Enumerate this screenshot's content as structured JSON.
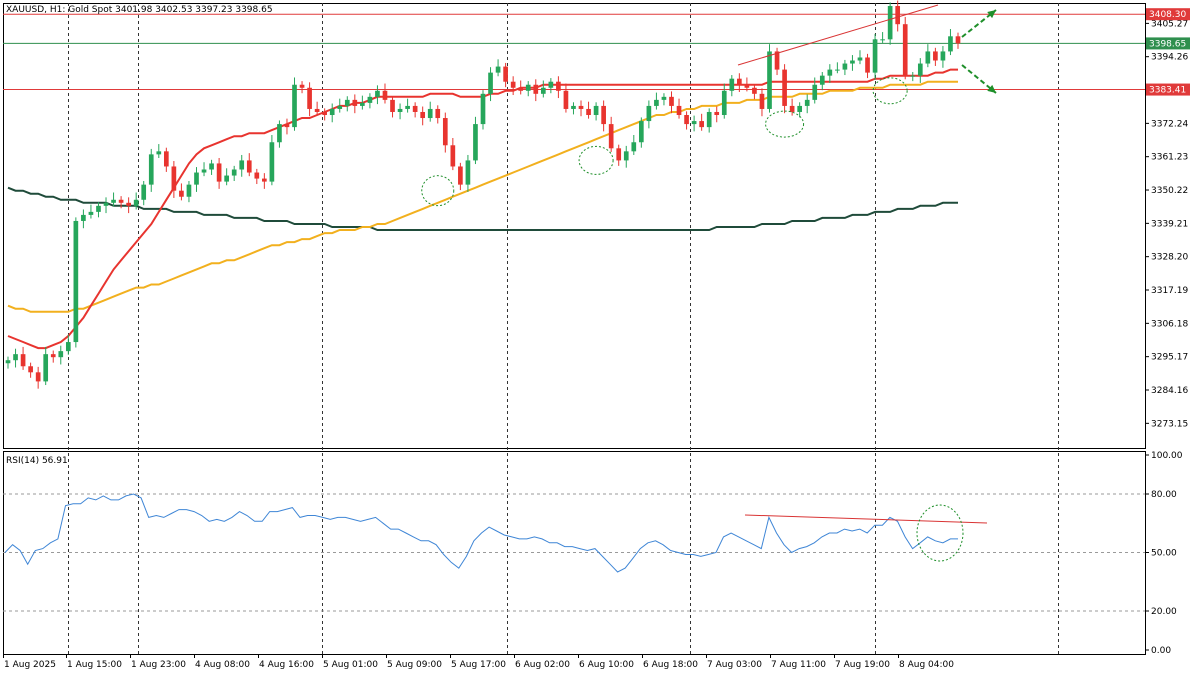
{
  "header": {
    "text": "XAUUSD, H1:  Gold Spot  3401.98 3402.53 3397.23 3398.65"
  },
  "rsi_header": {
    "text": "RSI(14) 56.91"
  },
  "colors": {
    "bull": "#26a65b",
    "bear": "#e8342f",
    "ma_fast": "#e8342f",
    "ma_mid": "#f2b01e",
    "ma_slow": "#1f4b3a",
    "rsi": "#3f86d6",
    "hline_red": "#e03a3a",
    "hline_green": "#2f8f4e",
    "annotation_green": "#1f8f2a",
    "trend_red": "#d93434"
  },
  "chart_data": [
    {
      "type": "candlestick",
      "symbol": "XAUUSD",
      "timeframe": "H1",
      "ylim": [
        3265,
        3412
      ],
      "y_ticks": [
        "3405.27",
        "3394.26",
        "3383.41",
        "3372.24",
        "3361.23",
        "3350.22",
        "3339.21",
        "3328.20",
        "3317.19",
        "3306.18",
        "3295.17",
        "3284.16",
        "3273.15"
      ],
      "x_ticks": [
        "1 Aug 2025",
        "1 Aug 15:00",
        "1 Aug 23:00",
        "4 Aug 08:00",
        "4 Aug 16:00",
        "5 Aug 01:00",
        "5 Aug 09:00",
        "5 Aug 17:00",
        "6 Aug 02:00",
        "6 Aug 10:00",
        "6 Aug 18:00",
        "7 Aug 03:00",
        "7 Aug 11:00",
        "7 Aug 19:00",
        "8 Aug 04:00"
      ],
      "price_labels": [
        {
          "value": 3408.3,
          "text": "3408.30",
          "color": "#e03a3a"
        },
        {
          "value": 3398.65,
          "text": "3398.65",
          "color": "#2f8f4e"
        },
        {
          "value": 3383.41,
          "text": "3383.41",
          "color": "#e03a3a"
        }
      ],
      "close": [
        3294,
        3296,
        3292,
        3290,
        3287,
        3296,
        3295,
        3297,
        3300,
        3340,
        3342,
        3343,
        3345,
        3346,
        3347,
        3346,
        3345,
        3347,
        3352,
        3362,
        3363,
        3358,
        3350,
        3348,
        3352,
        3356,
        3357,
        3359,
        3353,
        3355,
        3357,
        3360,
        3356,
        3354,
        3353,
        3366,
        3372,
        3371,
        3385,
        3384,
        3377,
        3376,
        3375,
        3377,
        3378,
        3380,
        3378,
        3379,
        3381,
        3383,
        3380,
        3376,
        3377,
        3378,
        3376,
        3374,
        3377,
        3374,
        3365,
        3358,
        3352,
        3360,
        3372,
        3382,
        3389,
        3391,
        3386,
        3384,
        3383,
        3385,
        3382,
        3384,
        3386,
        3383,
        3377,
        3378,
        3377,
        3375,
        3378,
        3372,
        3364,
        3360,
        3363,
        3366,
        3373,
        3378,
        3380,
        3381,
        3378,
        3375,
        3372,
        3373,
        3371,
        3376,
        3375,
        3383,
        3387,
        3385,
        3384,
        3382,
        3377,
        3396,
        3390,
        3378,
        3376,
        3378,
        3380,
        3385,
        3388,
        3390,
        3390,
        3392,
        3393,
        3394,
        3389,
        3400,
        3400,
        3411,
        3405,
        3388,
        3388,
        3392,
        3396,
        3393,
        3396,
        3401,
        3398.65
      ],
      "ma_fast": [
        3302,
        3301,
        3300,
        3299,
        3298,
        3298,
        3299,
        3300,
        3302,
        3305,
        3308,
        3312,
        3316,
        3320,
        3324,
        3327,
        3330,
        3333,
        3336,
        3339,
        3343,
        3347,
        3351,
        3355,
        3359,
        3362,
        3364,
        3365,
        3366,
        3367,
        3368,
        3368,
        3369,
        3369,
        3369,
        3370,
        3371,
        3372,
        3373,
        3374,
        3374,
        3375,
        3376,
        3377,
        3378,
        3378,
        3379,
        3379,
        3380,
        3381,
        3381,
        3381,
        3381,
        3381,
        3381,
        3381,
        3382,
        3382,
        3382,
        3382,
        3381,
        3381,
        3381,
        3381,
        3382,
        3382,
        3383,
        3383,
        3384,
        3384,
        3384,
        3385,
        3385,
        3385,
        3385,
        3385,
        3385,
        3385,
        3385,
        3385,
        3385,
        3385,
        3385,
        3385,
        3385,
        3385,
        3385,
        3385,
        3385,
        3385,
        3385,
        3385,
        3385,
        3385,
        3385,
        3385,
        3385,
        3385,
        3385,
        3385,
        3385,
        3386,
        3386,
        3386,
        3386,
        3386,
        3386,
        3386,
        3386,
        3386,
        3386,
        3386,
        3386,
        3386,
        3386,
        3387,
        3387,
        3388,
        3388,
        3388,
        3388,
        3388,
        3388,
        3389,
        3389,
        3390,
        3390
      ],
      "ma_mid": [
        3312,
        3311,
        3311,
        3310,
        3310,
        3310,
        3310,
        3310,
        3310,
        3311,
        3311,
        3312,
        3313,
        3314,
        3315,
        3316,
        3317,
        3318,
        3318,
        3319,
        3319,
        3320,
        3321,
        3322,
        3323,
        3324,
        3325,
        3326,
        3326,
        3327,
        3327,
        3328,
        3329,
        3330,
        3331,
        3332,
        3332,
        3333,
        3333,
        3334,
        3334,
        3335,
        3336,
        3336,
        3337,
        3337,
        3337,
        3338,
        3338,
        3339,
        3339,
        3340,
        3341,
        3342,
        3343,
        3344,
        3345,
        3346,
        3347,
        3348,
        3349,
        3350,
        3351,
        3352,
        3353,
        3354,
        3355,
        3356,
        3357,
        3358,
        3359,
        3360,
        3361,
        3362,
        3363,
        3364,
        3365,
        3366,
        3367,
        3368,
        3369,
        3370,
        3371,
        3372,
        3373,
        3374,
        3375,
        3375,
        3376,
        3376,
        3377,
        3377,
        3378,
        3378,
        3378,
        3379,
        3379,
        3379,
        3380,
        3380,
        3380,
        3381,
        3381,
        3381,
        3381,
        3382,
        3382,
        3382,
        3382,
        3383,
        3383,
        3383,
        3383,
        3384,
        3384,
        3384,
        3384,
        3385,
        3385,
        3385,
        3385,
        3385,
        3386,
        3386,
        3386,
        3386,
        3386
      ],
      "ma_slow": [
        3351,
        3350,
        3350,
        3349,
        3349,
        3348,
        3348,
        3347,
        3347,
        3347,
        3346,
        3346,
        3346,
        3346,
        3345,
        3345,
        3345,
        3345,
        3344,
        3344,
        3344,
        3344,
        3343,
        3343,
        3343,
        3343,
        3342,
        3342,
        3342,
        3342,
        3341,
        3341,
        3341,
        3341,
        3340,
        3340,
        3340,
        3340,
        3339,
        3339,
        3339,
        3339,
        3339,
        3338,
        3338,
        3338,
        3338,
        3338,
        3338,
        3337,
        3337,
        3337,
        3337,
        3337,
        3337,
        3337,
        3337,
        3337,
        3337,
        3337,
        3337,
        3337,
        3337,
        3337,
        3337,
        3337,
        3337,
        3337,
        3337,
        3337,
        3337,
        3337,
        3337,
        3337,
        3337,
        3337,
        3337,
        3337,
        3337,
        3337,
        3337,
        3337,
        3337,
        3337,
        3337,
        3337,
        3337,
        3337,
        3337,
        3337,
        3337,
        3337,
        3337,
        3337,
        3338,
        3338,
        3338,
        3338,
        3338,
        3338,
        3339,
        3339,
        3339,
        3339,
        3340,
        3340,
        3340,
        3340,
        3341,
        3341,
        3341,
        3341,
        3342,
        3342,
        3342,
        3343,
        3343,
        3343,
        3344,
        3344,
        3344,
        3345,
        3345,
        3345,
        3346,
        3346,
        3346
      ]
    },
    {
      "type": "line",
      "name": "RSI(14)",
      "ylim": [
        0,
        100
      ],
      "y_ticks": [
        "100.00",
        "80.00",
        "50.00",
        "20.00",
        "0.00"
      ],
      "levels": [
        80,
        50,
        20
      ],
      "values": [
        50,
        54,
        51,
        44,
        51,
        52,
        55,
        57,
        74,
        75,
        75,
        78,
        77,
        79,
        77,
        77,
        79,
        80,
        78,
        68,
        69,
        68,
        70,
        72,
        72,
        71,
        69,
        66,
        67,
        66,
        68,
        71,
        69,
        66,
        66,
        71,
        71,
        72,
        73,
        68,
        69,
        69,
        68,
        67,
        68,
        68,
        67,
        66,
        67,
        68,
        65,
        62,
        62,
        60,
        58,
        56,
        56,
        54,
        49,
        45,
        42,
        48,
        56,
        60,
        63,
        61,
        59,
        58,
        57,
        57,
        58,
        57,
        55,
        55,
        53,
        53,
        52,
        51,
        52,
        48,
        44,
        40,
        42,
        47,
        52,
        55,
        56,
        54,
        51,
        50,
        49,
        49,
        48,
        49,
        50,
        58,
        60,
        58,
        56,
        54,
        52,
        68,
        60,
        54,
        50,
        52,
        53,
        55,
        58,
        60,
        60,
        62,
        61,
        62,
        60,
        64,
        64,
        68,
        66,
        58,
        52,
        55,
        58,
        56,
        55,
        57,
        57
      ]
    }
  ]
}
